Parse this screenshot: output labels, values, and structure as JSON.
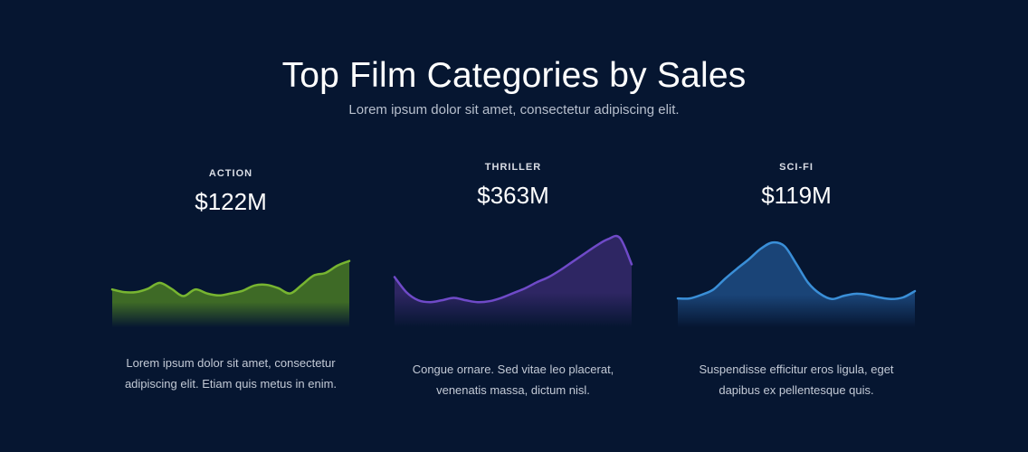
{
  "header": {
    "title": "Top Film Categories by Sales",
    "subtitle": "Lorem ipsum dolor sit amet, consectetur adipiscing elit."
  },
  "chart_data": [
    {
      "type": "area",
      "title": "ACTION",
      "value_label": "$122M",
      "description": "Lorem ipsum dolor sit amet, consectetur adipiscing elit. Etiam quis metus in enim.",
      "color": "#78b531",
      "fill": "#3e6a26",
      "x": [
        0,
        1,
        2,
        3,
        4,
        5,
        6,
        7,
        8,
        9,
        10,
        11,
        12,
        13,
        14,
        15,
        16,
        17,
        18,
        19,
        20
      ],
      "values": [
        0.57,
        0.53,
        0.53,
        0.58,
        0.67,
        0.58,
        0.47,
        0.57,
        0.51,
        0.48,
        0.51,
        0.55,
        0.63,
        0.64,
        0.59,
        0.51,
        0.64,
        0.78,
        0.82,
        0.93,
        1.0
      ],
      "ylim": [
        0,
        1.5
      ],
      "grid": false
    },
    {
      "type": "area",
      "title": "THRILLER",
      "value_label": "$363M",
      "description": "Congue ornare. Sed vitae leo placerat, venenatis massa, dictum nisl.",
      "color": "#6f4ac8",
      "fill": "#2e2663",
      "x": [
        0,
        1,
        2,
        3,
        4,
        5,
        6,
        7,
        8,
        9,
        10,
        11,
        12,
        13,
        14,
        15,
        16,
        17,
        18,
        19,
        20
      ],
      "values": [
        1.06,
        0.74,
        0.57,
        0.53,
        0.57,
        0.62,
        0.57,
        0.53,
        0.55,
        0.62,
        0.72,
        0.82,
        0.95,
        1.06,
        1.21,
        1.38,
        1.55,
        1.72,
        1.86,
        1.89,
        1.33
      ],
      "ylim": [
        0,
        2.1
      ],
      "grid": false
    },
    {
      "type": "area",
      "title": "SCI-FI",
      "value_label": "$119M",
      "description": "Suspendisse efficitur eros ligula, eget dapibus ex pellentesque quis.",
      "color": "#3a8fd8",
      "fill": "#1a4477",
      "x": [
        0,
        1,
        2,
        3,
        4,
        5,
        6,
        7,
        8,
        9,
        10,
        11,
        12,
        13,
        14,
        15,
        16,
        17,
        18,
        19,
        20
      ],
      "values": [
        0.55,
        0.55,
        0.62,
        0.72,
        0.93,
        1.12,
        1.3,
        1.5,
        1.62,
        1.55,
        1.21,
        0.85,
        0.64,
        0.54,
        0.6,
        0.64,
        0.62,
        0.57,
        0.54,
        0.57,
        0.69
      ],
      "ylim": [
        0,
        1.9
      ],
      "grid": false
    }
  ]
}
